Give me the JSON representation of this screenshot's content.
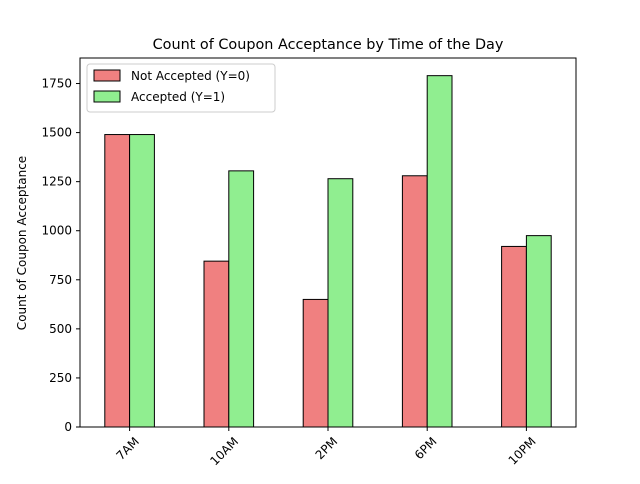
{
  "chart_data": {
    "type": "bar",
    "title": "Count of Coupon Acceptance by Time of the Day",
    "xlabel": "",
    "ylabel": "Count of Coupon Acceptance",
    "categories": [
      "7AM",
      "10AM",
      "2PM",
      "6PM",
      "10PM"
    ],
    "series": [
      {
        "name": "Not Accepted (Y=0)",
        "color": "#f08080",
        "values": [
          1490,
          845,
          650,
          1280,
          920
        ]
      },
      {
        "name": "Accepted (Y=1)",
        "color": "#90ee90",
        "values": [
          1490,
          1305,
          1265,
          1790,
          975
        ]
      }
    ],
    "ylim": [
      0,
      1880
    ],
    "yticks": [
      0,
      250,
      500,
      750,
      1000,
      1250,
      1500,
      1750
    ],
    "xtick_rotation": 45,
    "grid": false,
    "legend_position": "upper-left",
    "edge_color": "#000000"
  }
}
